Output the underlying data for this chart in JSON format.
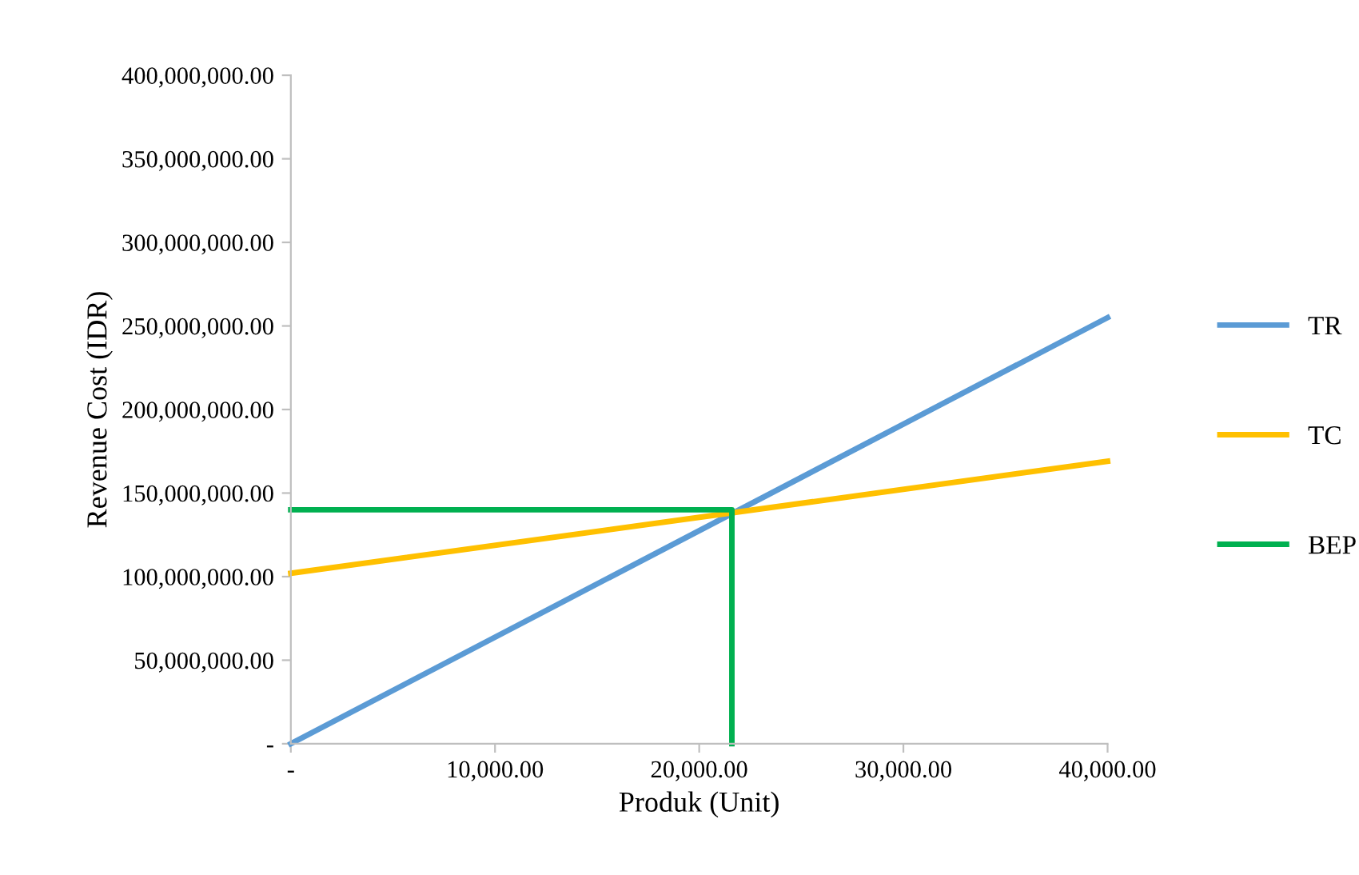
{
  "chart_data": {
    "type": "line",
    "xlabel": "Produk (Unit)",
    "ylabel": "Revenue Cost (IDR)",
    "series": [
      {
        "name": "TR",
        "color": "#5b9bd5",
        "x": [
          0,
          40000
        ],
        "values": [
          0,
          255000000
        ]
      },
      {
        "name": "TC",
        "color": "#ffc000",
        "x": [
          0,
          40000
        ],
        "values": [
          102000000,
          169000000
        ]
      },
      {
        "name": "BEP",
        "color": "#00b050",
        "x": [
          0,
          21600,
          21600
        ],
        "values": [
          140000000,
          140000000,
          0
        ]
      }
    ],
    "xlim": [
      0,
      40000
    ],
    "xticks": [
      {
        "value": 0,
        "label": "-"
      },
      {
        "value": 10000,
        "label": "10,000.00"
      },
      {
        "value": 20000,
        "label": "20,000.00"
      },
      {
        "value": 30000,
        "label": "30,000.00"
      },
      {
        "value": 40000,
        "label": "40,000.00"
      }
    ],
    "ylim": [
      0,
      400000000
    ],
    "yticks": [
      {
        "value": 0,
        "label": "-"
      },
      {
        "value": 50000000,
        "label": "50,000,000.00"
      },
      {
        "value": 100000000,
        "label": "100,000,000.00"
      },
      {
        "value": 150000000,
        "label": "150,000,000.00"
      },
      {
        "value": 200000000,
        "label": "200,000,000.00"
      },
      {
        "value": 250000000,
        "label": "250,000,000.00"
      },
      {
        "value": 300000000,
        "label": "300,000,000.00"
      },
      {
        "value": 350000000,
        "label": "350,000,000.00"
      },
      {
        "value": 400000000,
        "label": "400,000,000.00"
      }
    ],
    "grid": false,
    "legend": "right",
    "marker": "none",
    "line_style": "solid"
  }
}
